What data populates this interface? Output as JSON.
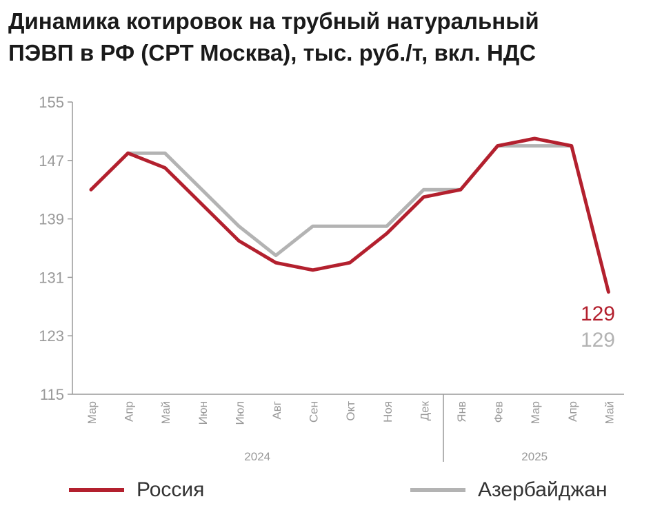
{
  "title_lines": [
    "Динамика котировок на трубный натуральный",
    "ПЭВП в РФ (СРТ Москва), тыс. руб./т, вкл. НДС"
  ],
  "colors": {
    "russia": "#b3202e",
    "azerbaijan": "#b3b3b3",
    "axis": "#999999",
    "text": "#999999"
  },
  "legend": {
    "russia": "Россия",
    "azerbaijan": "Азербайджан"
  },
  "chart_data": {
    "type": "line",
    "title": "Динамика котировок на трубный натуральный ПЭВП в РФ (СРТ Москва), тыс. руб./т, вкл. НДС",
    "categories": [
      "Мар",
      "Апр",
      "Май",
      "Июн",
      "Июл",
      "Авг",
      "Сен",
      "Окт",
      "Ноя",
      "Дек",
      "Янв",
      "Фев",
      "Мар",
      "Апр",
      "Май"
    ],
    "year_groups": [
      {
        "label": "2024",
        "from": 0,
        "to": 9
      },
      {
        "label": "2025",
        "from": 10,
        "to": 14
      }
    ],
    "y_ticks": [
      155,
      147,
      139,
      131,
      123,
      115
    ],
    "ylim": [
      115,
      155
    ],
    "series": [
      {
        "name": "Россия",
        "key": "russia",
        "values": [
          143,
          148,
          146,
          141,
          136,
          133,
          132,
          133,
          137,
          142,
          143,
          149,
          150,
          149,
          null
        ]
      },
      {
        "name": "Азербайджан",
        "key": "azerbaijan",
        "values": [
          null,
          148,
          148,
          143,
          138,
          134,
          138,
          138,
          138,
          143,
          143,
          149,
          149,
          149,
          null
        ]
      }
    ],
    "end_labels": {
      "russia": "129",
      "azerbaijan": "129"
    },
    "final_value": 129
  }
}
